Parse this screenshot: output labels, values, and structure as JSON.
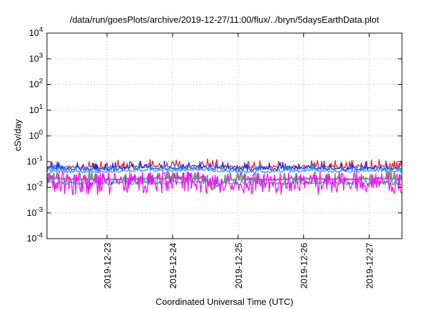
{
  "chart_data": {
    "type": "line",
    "title": "/data/run/goesPlots/archive/2019-12-27/11:00/flux/../bryn/5daysEarthData.plot",
    "xlabel": "Coordinated Universal Time (UTC)",
    "ylabel": "cSv/day",
    "y_scale": "log",
    "ylim": [
      0.0001,
      10000
    ],
    "y_ticks": [
      {
        "value": 0.0001,
        "base": "10",
        "exp": "-4"
      },
      {
        "value": 0.001,
        "base": "10",
        "exp": "-3"
      },
      {
        "value": 0.01,
        "base": "10",
        "exp": "-2"
      },
      {
        "value": 0.1,
        "base": "10",
        "exp": "-1"
      },
      {
        "value": 1,
        "base": "10",
        "exp": "0"
      },
      {
        "value": 10,
        "base": "10",
        "exp": "1"
      },
      {
        "value": 100,
        "base": "10",
        "exp": "2"
      },
      {
        "value": 1000,
        "base": "10",
        "exp": "3"
      },
      {
        "value": 10000,
        "base": "10",
        "exp": "4"
      }
    ],
    "xlim": [
      "2019-12-22 02:00",
      "2019-12-27 12:00"
    ],
    "x_ticks": [
      "2019-12-23",
      "2019-12-24",
      "2019-12-25",
      "2019-12-26",
      "2019-12-27"
    ],
    "grid": true,
    "x_sample_days": [
      22.1,
      22.6,
      23.1,
      23.6,
      24.1,
      24.5,
      24.6,
      24.9,
      25.1,
      25.6,
      26.1,
      26.6,
      27.1,
      27.5
    ],
    "series": [
      {
        "color": "#e41a1c",
        "typical": [
          0.065,
          0.06,
          0.06,
          0.065,
          0.065,
          0.07,
          0.065,
          0.06,
          0.06,
          0.06,
          0.065,
          0.06,
          0.065,
          0.06
        ],
        "spread": 0.12
      },
      {
        "color": "#0b24fb",
        "typical": [
          0.055,
          0.05,
          0.05,
          0.055,
          0.055,
          0.06,
          0.055,
          0.05,
          0.05,
          0.05,
          0.055,
          0.05,
          0.055,
          0.05
        ],
        "spread": 0.12
      },
      {
        "color": "#1e90ff",
        "typical": [
          0.04,
          0.04,
          0.04,
          0.045,
          0.045,
          0.05,
          0.045,
          0.04,
          0.04,
          0.04,
          0.045,
          0.04,
          0.045,
          0.04
        ],
        "spread": 0.1
      },
      {
        "color": "#00c08b",
        "typical": [
          0.015,
          0.014,
          0.014,
          0.015,
          0.015,
          0.015,
          0.012,
          0.014,
          0.014,
          0.014,
          0.015,
          0.014,
          0.015,
          0.014
        ],
        "spread": 0.14
      },
      {
        "color": "#888888",
        "typical": [
          0.022,
          0.02,
          0.02,
          0.022,
          0.022,
          0.022,
          0.008,
          0.02,
          0.02,
          0.02,
          0.022,
          0.02,
          0.022,
          0.02
        ],
        "spread": 0.05
      },
      {
        "color": "#ff00ff",
        "typical": [
          0.012,
          0.011,
          0.011,
          0.012,
          0.012,
          0.012,
          0.011,
          0.011,
          0.011,
          0.011,
          0.012,
          0.011,
          0.012,
          0.011
        ],
        "spread": 0.55
      }
    ]
  }
}
